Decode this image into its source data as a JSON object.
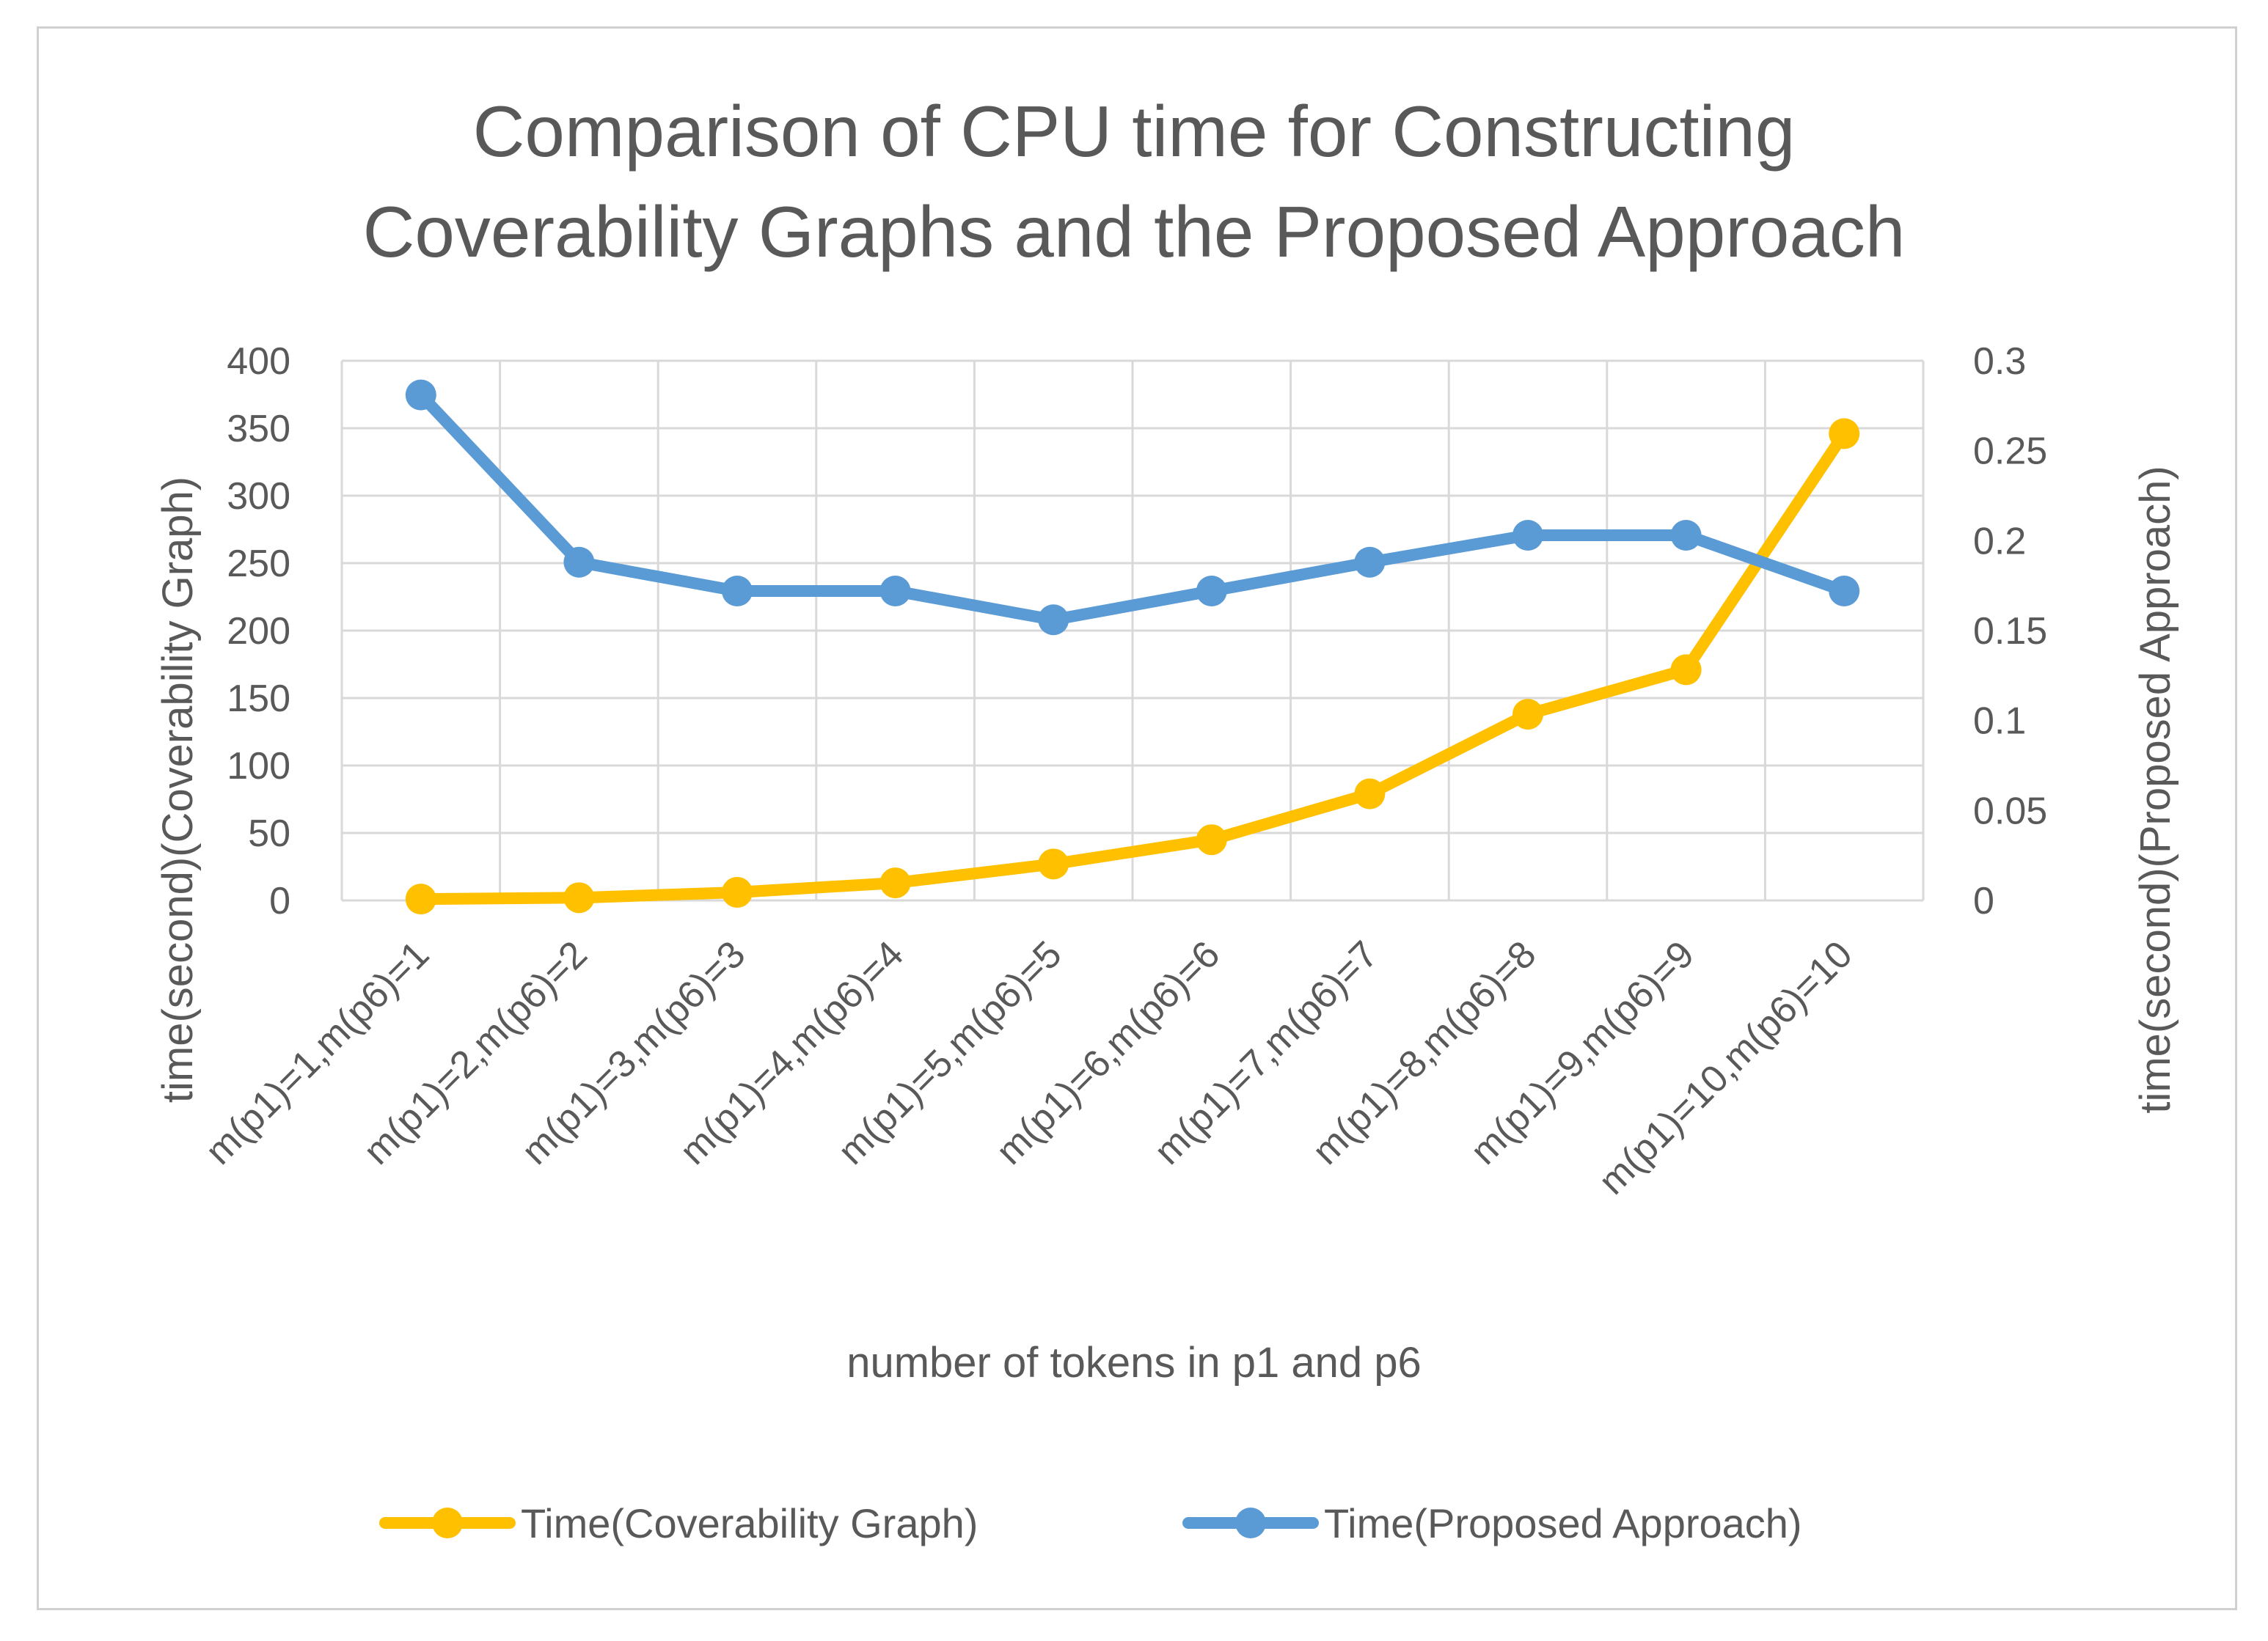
{
  "chart_data": {
    "type": "line",
    "title": "Comparison of CPU time for Constructing Coverability Graphs and the Proposed Approach",
    "title_lines": [
      "Comparison of CPU time for Constructing",
      "Coverability Graphs and the Proposed Approach"
    ],
    "xlabel": "number of tokens in p1 and p6",
    "ylabel_left": "time(second)(Coverability Graph)",
    "ylabel_right": "time(second)(Proposed Approach)",
    "categories": [
      "m(p1)=1,m(p6)=1",
      "m(p1)=2,m(p6)=2",
      "m(p1)=3,m(p6)=3",
      "m(p1)=4,m(p6)=4",
      "m(p1)=5,m(p6)=5",
      "m(p1)=6,m(p6)=6",
      "m(p1)=7,m(p6)=7",
      "m(p1)=8,m(p6)=8",
      "m(p1)=9,m(p6)=9",
      "m(p1)=10,m(p6)=10"
    ],
    "ylim_left": [
      0,
      400
    ],
    "yticks_left": [
      0,
      50,
      100,
      150,
      200,
      250,
      300,
      350,
      400
    ],
    "ylim_right": [
      0,
      0.3
    ],
    "yticks_right": [
      "0",
      "0.05",
      "0.1",
      "0.15",
      "0.2",
      "0.25",
      "0.3"
    ],
    "grid": true,
    "legend_position": "bottom",
    "series": [
      {
        "name": "Time(Coverability Graph)",
        "axis": "left",
        "color": "#FFC000",
        "values": [
          1,
          2,
          6,
          13,
          27,
          45,
          79,
          138,
          171,
          346
        ]
      },
      {
        "name": "Time(Proposed Approach)",
        "axis": "right",
        "color": "#5B9BD5",
        "values": [
          0.281,
          0.188,
          0.172,
          0.172,
          0.156,
          0.172,
          0.188,
          0.203,
          0.203,
          0.172
        ]
      }
    ]
  }
}
